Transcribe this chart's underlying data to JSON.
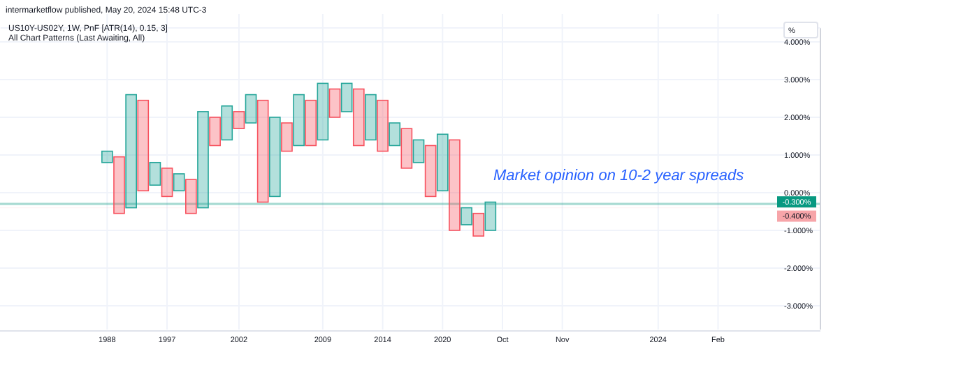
{
  "chart_data": {
    "type": "bar",
    "title": "US10Y-US02Y, 1W, PnF [ATR(14), 0.15, 3]",
    "subtitle": "All Chart Patterns (Last Awaiting, All)",
    "ylabel": "%",
    "annotations": [
      "intermarketflow published, May 20, 2024 15:48 UTC-3",
      "Market opinion on 10-2 year spreads"
    ],
    "categories": [
      "1988",
      null,
      null,
      null,
      null,
      "1997",
      null,
      null,
      null,
      null,
      null,
      "2002",
      null,
      null,
      null,
      null,
      null,
      null,
      "2009",
      null,
      null,
      null,
      null,
      "2014",
      null,
      null,
      null,
      null,
      "2020",
      null,
      null,
      null,
      null,
      "Oct",
      null,
      null,
      null,
      null,
      "Nov",
      null,
      null,
      null,
      null,
      null,
      null,
      null,
      "2024",
      null,
      null,
      null,
      null,
      "Feb",
      null,
      null,
      null,
      null
    ],
    "base": [
      0.8,
      -0.55,
      -0.4,
      0.05,
      0.2,
      -0.1,
      0.05,
      -0.55,
      -0.4,
      1.25,
      1.4,
      1.7,
      1.85,
      -0.25,
      -0.1,
      1.1,
      1.25,
      1.25,
      1.4,
      2.0,
      2.15,
      1.25,
      1.4,
      1.1,
      1.25,
      0.65,
      0.8,
      -0.1,
      0.05,
      -1.0,
      -0.85,
      -1.15,
      -1.0,
      null,
      null,
      null,
      null,
      null,
      null,
      null,
      null,
      null,
      null,
      null,
      null,
      null,
      null,
      null,
      null,
      null,
      null,
      null,
      null,
      null,
      null,
      null
    ],
    "values": [
      0.3,
      1.5,
      3.0,
      2.4,
      0.6,
      0.75,
      0.45,
      0.9,
      2.55,
      0.75,
      0.9,
      0.45,
      0.75,
      2.7,
      2.1,
      0.75,
      1.35,
      1.2,
      1.5,
      0.75,
      0.75,
      1.5,
      1.2,
      1.35,
      0.6,
      1.05,
      0.6,
      1.35,
      1.5,
      2.4,
      0.45,
      0.6,
      0.75,
      null,
      null,
      null,
      null,
      null,
      null,
      null,
      null,
      null,
      null,
      null,
      null,
      null,
      null,
      null,
      null,
      null,
      null,
      null,
      null,
      null,
      null,
      null
    ],
    "colors": [
      "#26a69a",
      "#f7525f",
      "#26a69a",
      "#f7525f",
      "#26a69a",
      "#f7525f",
      "#26a69a",
      "#f7525f",
      "#26a69a",
      "#f7525f",
      "#26a69a",
      "#f7525f",
      "#26a69a",
      "#f7525f",
      "#26a69a",
      "#f7525f",
      "#26a69a",
      "#f7525f",
      "#26a69a",
      "#f7525f",
      "#26a69a",
      "#f7525f",
      "#26a69a",
      "#f7525f",
      "#26a69a",
      "#f7525f",
      "#26a69a",
      "#f7525f",
      "#26a69a",
      "#f7525f",
      "#26a69a",
      "#f7525f",
      "#26a69a",
      null,
      null,
      null,
      null,
      null,
      null,
      null,
      null,
      null,
      null,
      null,
      null,
      null,
      null,
      null,
      null,
      null,
      null,
      null,
      null,
      null,
      null,
      null
    ],
    "ylim": [
      -3.63,
      4.37
    ],
    "yticks": [
      {
        "value": 4,
        "label": "4.000%"
      },
      {
        "value": 3,
        "label": "3.000%"
      },
      {
        "value": 2,
        "label": "2.000%"
      },
      {
        "value": 1,
        "label": "1.000%"
      },
      {
        "value": 0,
        "label": "0.000%"
      },
      {
        "value": -1,
        "label": "-1.000%"
      },
      {
        "value": -2,
        "label": "-2.000%"
      },
      {
        "value": -3,
        "label": "-3.000%"
      }
    ],
    "ref_lines": [
      {
        "axis": "y",
        "value": -0.3,
        "label": "-0.300%",
        "color": "#089981"
      },
      {
        "axis": "y",
        "value": -0.4,
        "label": "-0.400%",
        "color": "#f7a5a9"
      }
    ],
    "grid": true
  }
}
